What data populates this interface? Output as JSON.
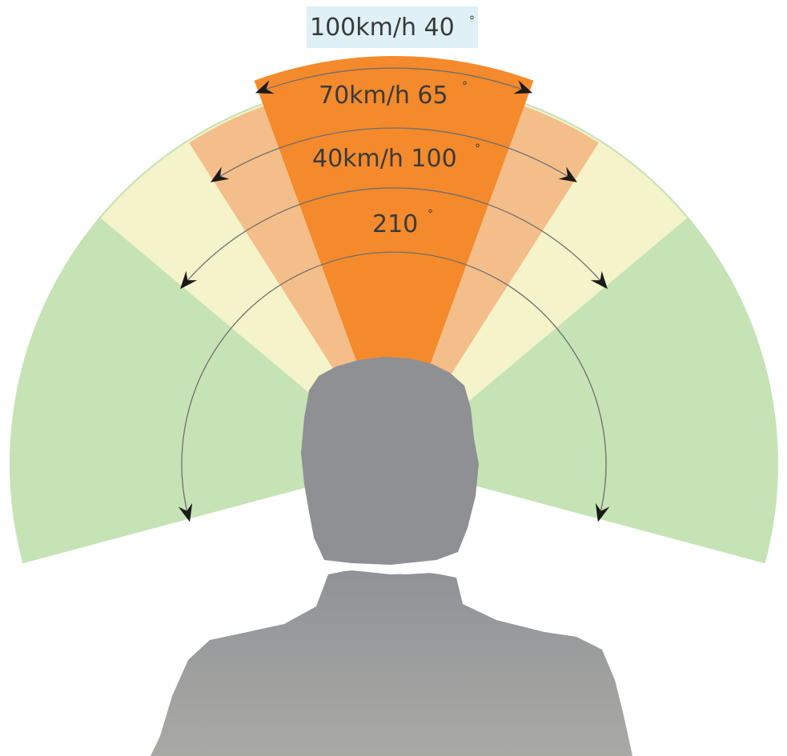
{
  "diagram": {
    "zones": [
      {
        "id": "zone-210",
        "angle_deg": 210,
        "speed": "",
        "label": "210",
        "color": "#c5e3b4"
      },
      {
        "id": "zone-100",
        "angle_deg": 100,
        "speed": "40km/h",
        "label": "40km/h 100",
        "color": "#f4f3c9"
      },
      {
        "id": "zone-65",
        "angle_deg": 65,
        "speed": "70km/h",
        "label": "70km/h 65",
        "color": "#f4be8a"
      },
      {
        "id": "zone-40",
        "angle_deg": 40,
        "speed": "100km/h",
        "label": "100km/h 40",
        "color": "#f48a2c"
      }
    ],
    "degree_symbol": "°",
    "person_color": "#8e9094",
    "arrow_color": "#1a1a1a",
    "label_box_color": "#dff0f6"
  }
}
